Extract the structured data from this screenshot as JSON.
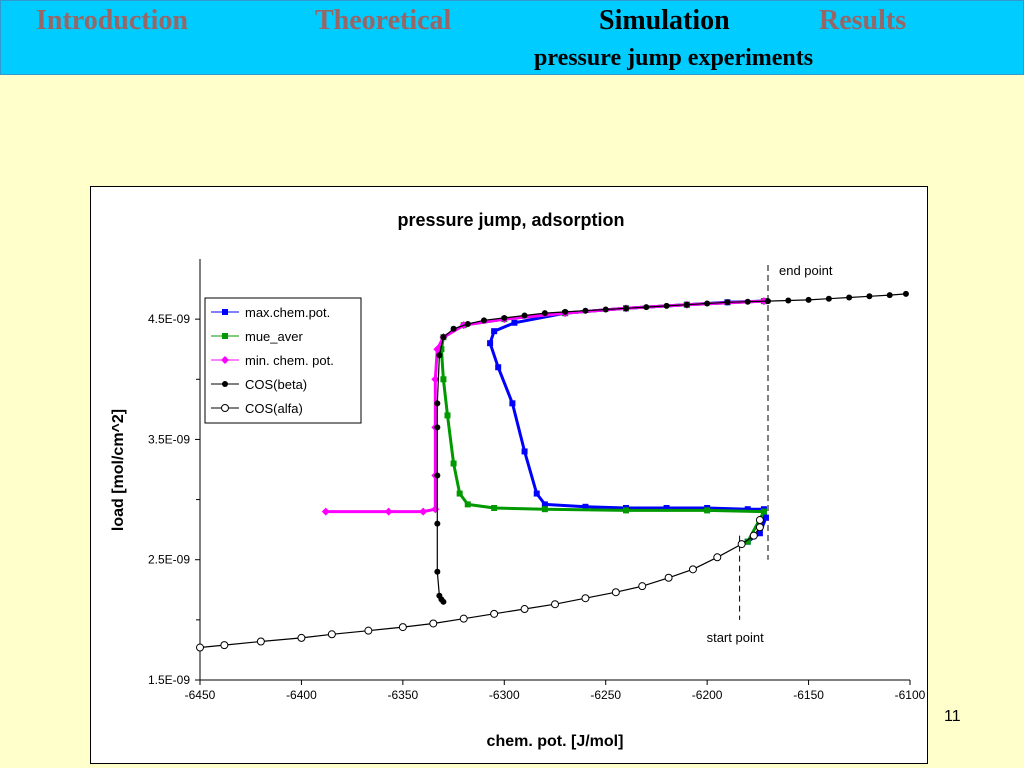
{
  "header": {
    "nav": [
      "Introduction",
      "Theoretical",
      "Simulation",
      "Results"
    ],
    "active_nav": "Simulation",
    "subtitle": "pressure jump experiments"
  },
  "page_number": "11",
  "colors": {
    "header_bg": "#00ccff",
    "page_bg": "#ffffcc",
    "nav_inactive": "#996666",
    "max_chem_pot": "#0000ff",
    "mue_aver": "#009900",
    "min_chem_pot": "#ff00ff",
    "cos_beta": "#000000",
    "cos_alfa": "#000000"
  },
  "chart_data": {
    "type": "scatter",
    "title": "pressure jump, adsorption",
    "xlabel": "chem. pot. [J/mol]",
    "ylabel": "load [mol/cm^2]",
    "xlim": [
      -6450,
      -6100
    ],
    "ylim": [
      1.5e-09,
      5e-09
    ],
    "xticks": [
      -6450,
      -6400,
      -6350,
      -6300,
      -6250,
      -6200,
      -6150,
      -6100
    ],
    "xtick_labels": [
      "-6450",
      "-6400",
      "-6350",
      "-6300",
      "-6250",
      "-6200",
      "-6150",
      "-6100"
    ],
    "yticks": [
      1.5e-09,
      2.5e-09,
      3.5e-09,
      4.5e-09
    ],
    "ytick_labels": [
      "1.5E-09",
      "2.5E-09",
      "3.5E-09",
      "4.5E-09"
    ],
    "grid": false,
    "legend_position": "top-left",
    "series": [
      {
        "name": "max.chem.pot.",
        "marker": "square",
        "points": [
          [
            -6180,
            2.65e-09
          ],
          [
            -6174,
            2.72e-09
          ],
          [
            -6171,
            2.85e-09
          ],
          [
            -6172,
            2.92e-09
          ],
          [
            -6180,
            2.92e-09
          ],
          [
            -6200,
            2.93e-09
          ],
          [
            -6220,
            2.93e-09
          ],
          [
            -6240,
            2.93e-09
          ],
          [
            -6260,
            2.94e-09
          ],
          [
            -6280,
            2.96e-09
          ],
          [
            -6284,
            3.05e-09
          ],
          [
            -6290,
            3.4e-09
          ],
          [
            -6296,
            3.8e-09
          ],
          [
            -6303,
            4.1e-09
          ],
          [
            -6307,
            4.3e-09
          ],
          [
            -6305,
            4.4e-09
          ],
          [
            -6295,
            4.47e-09
          ],
          [
            -6270,
            4.55e-09
          ],
          [
            -6240,
            4.59e-09
          ],
          [
            -6210,
            4.62e-09
          ],
          [
            -6190,
            4.64e-09
          ],
          [
            -6172,
            4.65e-09
          ]
        ]
      },
      {
        "name": "mue_aver",
        "marker": "square",
        "points": [
          [
            -6180,
            2.65e-09
          ],
          [
            -6172,
            2.9e-09
          ],
          [
            -6200,
            2.91e-09
          ],
          [
            -6240,
            2.91e-09
          ],
          [
            -6280,
            2.92e-09
          ],
          [
            -6305,
            2.93e-09
          ],
          [
            -6318,
            2.96e-09
          ],
          [
            -6322,
            3.05e-09
          ],
          [
            -6325,
            3.3e-09
          ],
          [
            -6328,
            3.7e-09
          ],
          [
            -6330,
            4e-09
          ],
          [
            -6331,
            4.25e-09
          ],
          [
            -6330,
            4.35e-09
          ],
          [
            -6320,
            4.45e-09
          ],
          [
            -6300,
            4.5e-09
          ],
          [
            -6270,
            4.55e-09
          ],
          [
            -6240,
            4.59e-09
          ],
          [
            -6210,
            4.62e-09
          ],
          [
            -6172,
            4.65e-09
          ]
        ]
      },
      {
        "name": "min. chem. pot.",
        "marker": "diamond",
        "points": [
          [
            -6388,
            2.9e-09
          ],
          [
            -6357,
            2.9e-09
          ],
          [
            -6340,
            2.9e-09
          ],
          [
            -6334,
            2.92e-09
          ],
          [
            -6334,
            3.2e-09
          ],
          [
            -6334,
            3.6e-09
          ],
          [
            -6334,
            4e-09
          ],
          [
            -6333,
            4.25e-09
          ],
          [
            -6330,
            4.35e-09
          ],
          [
            -6320,
            4.45e-09
          ],
          [
            -6300,
            4.5e-09
          ],
          [
            -6270,
            4.55e-09
          ],
          [
            -6240,
            4.59e-09
          ],
          [
            -6210,
            4.62e-09
          ],
          [
            -6172,
            4.65e-09
          ]
        ]
      },
      {
        "name": "COS(beta)",
        "marker": "circle-filled",
        "points": [
          [
            -6330,
            2.15e-09
          ],
          [
            -6331,
            2.17e-09
          ],
          [
            -6332,
            2.2e-09
          ],
          [
            -6333,
            2.4e-09
          ],
          [
            -6333,
            2.8e-09
          ],
          [
            -6333,
            3.2e-09
          ],
          [
            -6333,
            3.6e-09
          ],
          [
            -6333,
            3.8e-09
          ],
          [
            -6332,
            4.2e-09
          ],
          [
            -6330,
            4.35e-09
          ],
          [
            -6325,
            4.42e-09
          ],
          [
            -6318,
            4.46e-09
          ],
          [
            -6310,
            4.49e-09
          ],
          [
            -6300,
            4.51e-09
          ],
          [
            -6290,
            4.53e-09
          ],
          [
            -6280,
            4.55e-09
          ],
          [
            -6270,
            4.56e-09
          ],
          [
            -6260,
            4.57e-09
          ],
          [
            -6250,
            4.58e-09
          ],
          [
            -6240,
            4.59e-09
          ],
          [
            -6230,
            4.6e-09
          ],
          [
            -6220,
            4.61e-09
          ],
          [
            -6210,
            4.62e-09
          ],
          [
            -6200,
            4.63e-09
          ],
          [
            -6190,
            4.64e-09
          ],
          [
            -6180,
            4.645e-09
          ],
          [
            -6170,
            4.65e-09
          ],
          [
            -6160,
            4.655e-09
          ],
          [
            -6150,
            4.66e-09
          ],
          [
            -6140,
            4.67e-09
          ],
          [
            -6130,
            4.68e-09
          ],
          [
            -6120,
            4.69e-09
          ],
          [
            -6110,
            4.7e-09
          ],
          [
            -6102,
            4.71e-09
          ]
        ]
      },
      {
        "name": "COS(alfa)",
        "marker": "circle-open",
        "points": [
          [
            -6450,
            1.77e-09
          ],
          [
            -6438,
            1.79e-09
          ],
          [
            -6420,
            1.82e-09
          ],
          [
            -6400,
            1.85e-09
          ],
          [
            -6385,
            1.88e-09
          ],
          [
            -6367,
            1.91e-09
          ],
          [
            -6350,
            1.94e-09
          ],
          [
            -6335,
            1.97e-09
          ],
          [
            -6320,
            2.01e-09
          ],
          [
            -6305,
            2.05e-09
          ],
          [
            -6290,
            2.09e-09
          ],
          [
            -6275,
            2.13e-09
          ],
          [
            -6260,
            2.18e-09
          ],
          [
            -6245,
            2.23e-09
          ],
          [
            -6232,
            2.28e-09
          ],
          [
            -6219,
            2.35e-09
          ],
          [
            -6207,
            2.42e-09
          ],
          [
            -6195,
            2.52e-09
          ],
          [
            -6183,
            2.63e-09
          ],
          [
            -6177,
            2.7e-09
          ],
          [
            -6174,
            2.77e-09
          ],
          [
            -6174,
            2.83e-09
          ]
        ]
      }
    ],
    "annotations": [
      {
        "text": "end point",
        "x": -6170,
        "y_from": 2.5e-09,
        "y_to": 4.95e-09
      },
      {
        "text": "start point",
        "x": -6184,
        "y_from": 2e-09,
        "y_to": 2.7e-09
      }
    ]
  }
}
